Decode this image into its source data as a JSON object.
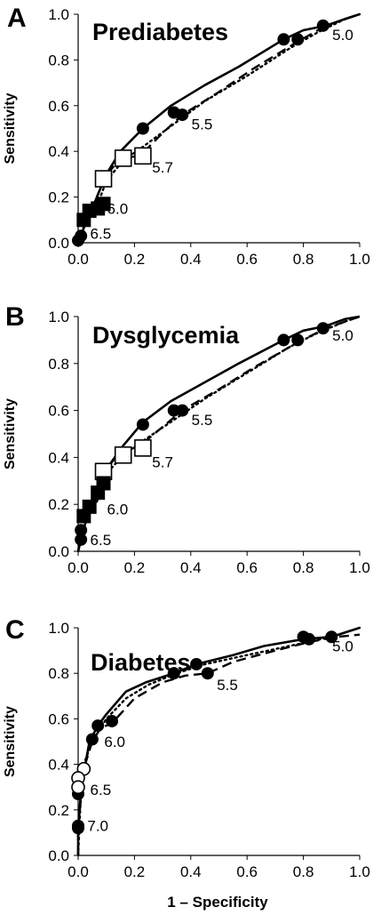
{
  "figure": {
    "xlabel": "1 – Specificity",
    "ylabel": "Sensitivity"
  },
  "chart_data": [
    {
      "type": "line",
      "panel": "A",
      "title": "Prediabetes",
      "ylabel": "Sensitivity",
      "xlabel": "",
      "xlim": [
        0,
        1
      ],
      "ylim": [
        0,
        1
      ],
      "xticks": [
        "0.0",
        "0.2",
        "0.4",
        "0.6",
        "0.8",
        "1.0"
      ],
      "yticks": [
        "0.0",
        "0.2",
        "0.4",
        "0.6",
        "0.8",
        "1.0"
      ],
      "grid": false,
      "series": [
        {
          "style": "solid",
          "x": [
            0,
            0.01,
            0.03,
            0.06,
            0.1,
            0.15,
            0.23,
            0.33,
            0.45,
            0.57,
            0.73,
            0.8,
            0.88,
            0.95,
            1.0
          ],
          "y": [
            0,
            0.03,
            0.1,
            0.18,
            0.3,
            0.4,
            0.5,
            0.6,
            0.69,
            0.77,
            0.89,
            0.93,
            0.95,
            0.98,
            1.0
          ]
        },
        {
          "style": "dotted",
          "x": [
            0,
            0.01,
            0.03,
            0.07,
            0.1,
            0.16,
            0.23,
            0.34,
            0.45,
            0.6,
            0.75,
            0.85,
            0.95,
            1.0
          ],
          "y": [
            0,
            0.03,
            0.1,
            0.17,
            0.27,
            0.36,
            0.42,
            0.52,
            0.62,
            0.73,
            0.85,
            0.92,
            0.98,
            1.0
          ]
        },
        {
          "style": "dashed",
          "x": [
            0,
            0.02,
            0.05,
            0.09,
            0.15,
            0.22,
            0.3,
            0.37,
            0.5,
            0.62,
            0.78,
            0.88,
            1.0
          ],
          "y": [
            0,
            0.07,
            0.14,
            0.28,
            0.37,
            0.38,
            0.48,
            0.56,
            0.66,
            0.76,
            0.88,
            0.95,
            1.0
          ]
        }
      ],
      "markers": [
        {
          "shape": "circle-filled",
          "x": [
            0.87,
            0.78,
            0.73,
            0.34,
            0.37,
            0.23,
            0.0,
            0.01
          ],
          "y": [
            0.95,
            0.89,
            0.89,
            0.57,
            0.56,
            0.5,
            0.01,
            0.03
          ]
        },
        {
          "shape": "square-open",
          "x": [
            0.09,
            0.16,
            0.23
          ],
          "y": [
            0.28,
            0.37,
            0.38
          ]
        },
        {
          "shape": "square-filled",
          "x": [
            0.02,
            0.04,
            0.07,
            0.09
          ],
          "y": [
            0.1,
            0.14,
            0.15,
            0.17
          ]
        }
      ],
      "annotations": [
        {
          "text": "5.0",
          "x": 0.94,
          "y": 0.91
        },
        {
          "text": "5.5",
          "x": 0.44,
          "y": 0.52
        },
        {
          "text": "5.7",
          "x": 0.3,
          "y": 0.33
        },
        {
          "text": "6.0",
          "x": 0.14,
          "y": 0.15
        },
        {
          "text": "6.5",
          "x": 0.08,
          "y": 0.04
        }
      ]
    },
    {
      "type": "line",
      "panel": "B",
      "title": "Dysglycemia",
      "ylabel": "Sensitivity",
      "xlabel": "",
      "xlim": [
        0,
        1
      ],
      "ylim": [
        0,
        1
      ],
      "xticks": [
        "0.0",
        "0.2",
        "0.4",
        "0.6",
        "0.8",
        "1.0"
      ],
      "yticks": [
        "0.0",
        "0.2",
        "0.4",
        "0.6",
        "0.8",
        "1.0"
      ],
      "grid": false,
      "series": [
        {
          "style": "solid",
          "x": [
            0,
            0.01,
            0.03,
            0.06,
            0.1,
            0.16,
            0.23,
            0.33,
            0.45,
            0.57,
            0.73,
            0.8,
            0.88,
            0.95,
            1.0
          ],
          "y": [
            0,
            0.05,
            0.14,
            0.23,
            0.35,
            0.45,
            0.55,
            0.64,
            0.72,
            0.8,
            0.9,
            0.94,
            0.96,
            0.99,
            1.0
          ]
        },
        {
          "style": "dotted",
          "x": [
            0,
            0.01,
            0.03,
            0.07,
            0.1,
            0.16,
            0.23,
            0.34,
            0.45,
            0.6,
            0.75,
            0.85,
            0.95,
            1.0
          ],
          "y": [
            0,
            0.05,
            0.14,
            0.22,
            0.33,
            0.41,
            0.47,
            0.56,
            0.65,
            0.76,
            0.87,
            0.93,
            0.98,
            1.0
          ]
        },
        {
          "style": "dashed",
          "x": [
            0,
            0.02,
            0.04,
            0.07,
            0.09,
            0.15,
            0.22,
            0.3,
            0.37,
            0.5,
            0.62,
            0.78,
            0.88,
            1.0
          ],
          "y": [
            0,
            0.15,
            0.2,
            0.25,
            0.34,
            0.42,
            0.45,
            0.53,
            0.6,
            0.69,
            0.78,
            0.89,
            0.95,
            1.0
          ]
        }
      ],
      "markers": [
        {
          "shape": "circle-filled",
          "x": [
            0.87,
            0.78,
            0.73,
            0.34,
            0.37,
            0.23,
            0.01,
            0.01
          ],
          "y": [
            0.95,
            0.9,
            0.9,
            0.6,
            0.6,
            0.54,
            0.05,
            0.09
          ]
        },
        {
          "shape": "square-open",
          "x": [
            0.09,
            0.16,
            0.23
          ],
          "y": [
            0.34,
            0.41,
            0.44
          ]
        },
        {
          "shape": "square-filled",
          "x": [
            0.02,
            0.04,
            0.07,
            0.09
          ],
          "y": [
            0.15,
            0.19,
            0.25,
            0.29
          ]
        }
      ],
      "annotations": [
        {
          "text": "5.0",
          "x": 0.94,
          "y": 0.92
        },
        {
          "text": "5.5",
          "x": 0.44,
          "y": 0.56
        },
        {
          "text": "5.7",
          "x": 0.3,
          "y": 0.38
        },
        {
          "text": "6.0",
          "x": 0.14,
          "y": 0.18
        },
        {
          "text": "6.5",
          "x": 0.08,
          "y": 0.05
        }
      ]
    },
    {
      "type": "line",
      "panel": "C",
      "title": "Diabetes",
      "ylabel": "Sensitivity",
      "xlabel": "1 – Specificity",
      "xlim": [
        0,
        1
      ],
      "ylim": [
        0,
        1
      ],
      "xticks": [
        "0.0",
        "0.2",
        "0.4",
        "0.6",
        "0.8",
        "1.0"
      ],
      "yticks": [
        "0.0",
        "0.2",
        "0.4",
        "0.6",
        "0.8",
        "1.0"
      ],
      "grid": false,
      "series": [
        {
          "style": "solid",
          "x": [
            0,
            0.0,
            0.01,
            0.02,
            0.04,
            0.07,
            0.1,
            0.17,
            0.24,
            0.34,
            0.42,
            0.55,
            0.66,
            0.8,
            0.9,
            1.0
          ],
          "y": [
            0,
            0.12,
            0.28,
            0.36,
            0.5,
            0.57,
            0.62,
            0.72,
            0.76,
            0.8,
            0.84,
            0.88,
            0.92,
            0.95,
            0.96,
            1.0
          ]
        },
        {
          "style": "dotted",
          "x": [
            0,
            0.01,
            0.02,
            0.05,
            0.1,
            0.17,
            0.25,
            0.35,
            0.45,
            0.6,
            0.75,
            0.9,
            1.0
          ],
          "y": [
            0,
            0.28,
            0.4,
            0.5,
            0.6,
            0.69,
            0.75,
            0.8,
            0.84,
            0.88,
            0.92,
            0.96,
            1.0
          ]
        },
        {
          "style": "dashed",
          "x": [
            0,
            0.0,
            0.02,
            0.05,
            0.08,
            0.12,
            0.2,
            0.3,
            0.38,
            0.46,
            0.55,
            0.7,
            0.83,
            0.92,
            1.0
          ],
          "y": [
            0,
            0.12,
            0.38,
            0.5,
            0.56,
            0.58,
            0.69,
            0.76,
            0.79,
            0.8,
            0.85,
            0.9,
            0.94,
            0.96,
            0.97
          ]
        }
      ],
      "markers": [
        {
          "shape": "circle-filled",
          "x": [
            0.9,
            0.82,
            0.8,
            0.46,
            0.42,
            0.34,
            0.12,
            0.07,
            0.05,
            0.0,
            0.0,
            0.0
          ],
          "y": [
            0.96,
            0.95,
            0.96,
            0.8,
            0.84,
            0.8,
            0.59,
            0.57,
            0.51,
            0.27,
            0.13,
            0.12
          ]
        },
        {
          "shape": "circle-open",
          "x": [
            0.02,
            0.0,
            0.0
          ],
          "y": [
            0.38,
            0.34,
            0.3
          ]
        }
      ],
      "annotations": [
        {
          "text": "5.0",
          "x": 0.94,
          "y": 0.92
        },
        {
          "text": "5.5",
          "x": 0.53,
          "y": 0.75
        },
        {
          "text": "6.0",
          "x": 0.13,
          "y": 0.5
        },
        {
          "text": "6.5",
          "x": 0.08,
          "y": 0.29
        },
        {
          "text": "7.0",
          "x": 0.07,
          "y": 0.13
        }
      ]
    }
  ]
}
